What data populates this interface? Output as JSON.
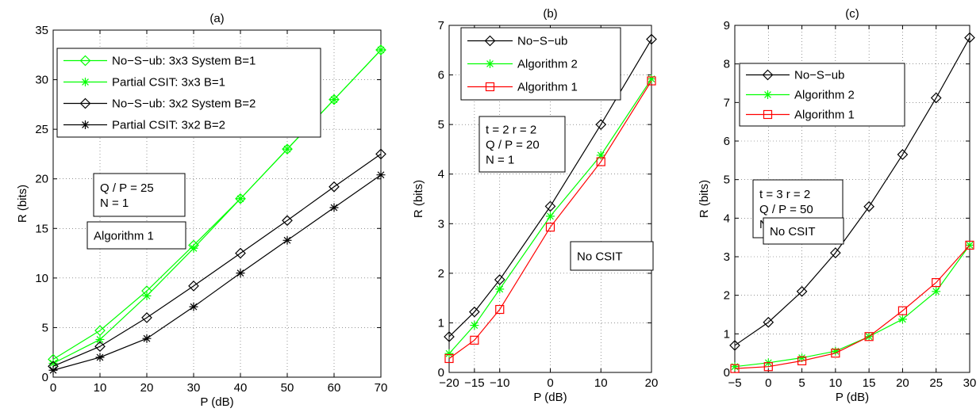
{
  "chart_data": [
    {
      "type": "line",
      "title": "(a)",
      "xlabel": "P (dB)",
      "ylabel": "R (bits)",
      "xlim": [
        0,
        70
      ],
      "ylim": [
        0,
        35
      ],
      "xticks": [
        0,
        10,
        20,
        30,
        40,
        50,
        60,
        70
      ],
      "xtick_labels": [
        "0",
        "10",
        "20",
        "30",
        "40",
        "50",
        "60",
        "70"
      ],
      "yticks": [
        0,
        5,
        10,
        15,
        20,
        25,
        30,
        35
      ],
      "ytick_labels": [
        "0",
        "5",
        "10",
        "15",
        "20",
        "25",
        "30",
        "35"
      ],
      "grid": true,
      "legend_position": "top-left",
      "series": [
        {
          "name": "No−S−ub: 3x3 System B=1",
          "color": "#00ff00",
          "marker": "diamond",
          "x": [
            0,
            10,
            20,
            30,
            40,
            50,
            60,
            70
          ],
          "y": [
            1.8,
            4.7,
            8.7,
            13.3,
            18.0,
            23.0,
            28.0,
            33.0
          ]
        },
        {
          "name": "Partial CSIT: 3x3 B=1",
          "color": "#00ff00",
          "marker": "star",
          "x": [
            0,
            10,
            20,
            30,
            40,
            50,
            60,
            70
          ],
          "y": [
            1.4,
            3.8,
            8.2,
            13.0,
            18.0,
            23.0,
            28.0,
            33.0
          ]
        },
        {
          "name": "No−S−ub: 3x2 System B=2",
          "color": "#000000",
          "marker": "diamond",
          "x": [
            0,
            10,
            20,
            30,
            40,
            50,
            60,
            70
          ],
          "y": [
            1.1,
            3.1,
            6.0,
            9.2,
            12.5,
            15.8,
            19.2,
            22.5
          ]
        },
        {
          "name": "Partial CSIT: 3x2 B=2",
          "color": "#000000",
          "marker": "star",
          "x": [
            0,
            10,
            20,
            30,
            40,
            50,
            60,
            70
          ],
          "y": [
            0.7,
            2.0,
            3.9,
            7.1,
            10.5,
            13.8,
            17.1,
            20.4
          ]
        }
      ],
      "annotations": [
        {
          "lines": [
            "Q / P  =  25",
            "N  =  1"
          ]
        },
        {
          "lines": [
            "Algorithm 1"
          ]
        }
      ]
    },
    {
      "type": "line",
      "title": "(b)",
      "xlabel": "P (dB)",
      "ylabel": "R (bits)",
      "xlim": [
        -20,
        20
      ],
      "ylim": [
        0,
        7
      ],
      "xticks": [
        -20,
        -15,
        -10,
        0,
        10,
        20
      ],
      "xtick_labels": [
        "−20",
        "−15",
        "−10",
        "0",
        "10",
        "20"
      ],
      "yticks": [
        0,
        1,
        2,
        3,
        4,
        5,
        6,
        7
      ],
      "ytick_labels": [
        "0",
        "1",
        "2",
        "3",
        "4",
        "5",
        "6",
        "7"
      ],
      "grid": true,
      "legend_position": "top-left",
      "series": [
        {
          "name": "No−S−ub",
          "color": "#000000",
          "marker": "diamond",
          "x": [
            -20,
            -15,
            -10,
            0,
            10,
            20
          ],
          "y": [
            0.72,
            1.22,
            1.87,
            3.35,
            5.0,
            6.72
          ]
        },
        {
          "name": "Algorithm 2",
          "color": "#00ff00",
          "marker": "star",
          "x": [
            -20,
            -15,
            -10,
            0,
            10,
            20
          ],
          "y": [
            0.38,
            0.95,
            1.68,
            3.15,
            4.38,
            5.92
          ]
        },
        {
          "name": "Algorithm 1",
          "color": "#ff0000",
          "marker": "square",
          "x": [
            -20,
            -15,
            -10,
            0,
            10,
            20
          ],
          "y": [
            0.28,
            0.65,
            1.27,
            2.93,
            4.25,
            5.88
          ]
        }
      ],
      "annotations": [
        {
          "lines": [
            "t = 2   r = 2",
            "Q / P = 20",
            "N = 1"
          ]
        },
        {
          "lines": [
            "No CSIT"
          ]
        }
      ]
    },
    {
      "type": "line",
      "title": "(c)",
      "xlabel": "P (dB)",
      "ylabel": "R (bits)",
      "xlim": [
        -5,
        30
      ],
      "ylim": [
        0,
        9
      ],
      "xticks": [
        -5,
        0,
        5,
        10,
        15,
        20,
        25,
        30
      ],
      "xtick_labels": [
        "−5",
        "0",
        "5",
        "10",
        "15",
        "20",
        "25",
        "30"
      ],
      "yticks": [
        0,
        1,
        2,
        3,
        4,
        5,
        6,
        7,
        8,
        9
      ],
      "ytick_labels": [
        "0",
        "1",
        "2",
        "3",
        "4",
        "5",
        "6",
        "7",
        "8",
        "9"
      ],
      "grid": true,
      "legend_position": "top-left",
      "series": [
        {
          "name": "No−S−ub",
          "color": "#000000",
          "marker": "diamond",
          "x": [
            -5,
            0,
            5,
            10,
            15,
            20,
            25,
            30
          ],
          "y": [
            0.7,
            1.3,
            2.1,
            3.1,
            4.3,
            5.65,
            7.12,
            8.68
          ]
        },
        {
          "name": "Algorithm 2",
          "color": "#00ff00",
          "marker": "star",
          "x": [
            -5,
            0,
            5,
            10,
            15,
            20,
            25,
            30
          ],
          "y": [
            0.15,
            0.25,
            0.38,
            0.55,
            0.93,
            1.38,
            2.1,
            3.3
          ]
        },
        {
          "name": "Algorithm 1",
          "color": "#ff0000",
          "marker": "square",
          "x": [
            -5,
            0,
            5,
            10,
            15,
            20,
            25,
            30
          ],
          "y": [
            0.1,
            0.15,
            0.3,
            0.5,
            0.93,
            1.6,
            2.33,
            3.3
          ]
        }
      ],
      "annotations": [
        {
          "lines": [
            "t = 3   r = 2",
            "Q / P = 50",
            "N = 1"
          ]
        },
        {
          "lines": [
            "No CSIT"
          ]
        }
      ]
    }
  ]
}
